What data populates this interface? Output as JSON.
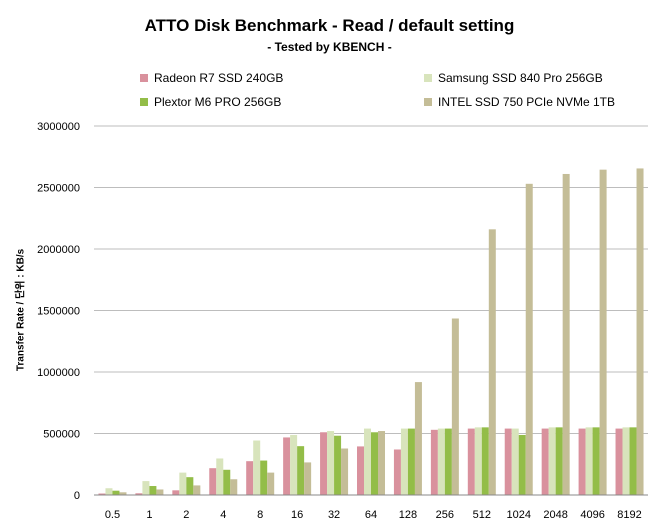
{
  "chart_data": {
    "type": "bar",
    "title": "ATTO Disk Benchmark - Read / default setting",
    "subtitle": "- Tested by KBENCH -",
    "ylabel": "Transfer Rate / 단위 : KB/s",
    "xlabel": "",
    "ylim": [
      0,
      3000000
    ],
    "yticks": [
      0,
      500000,
      1000000,
      1500000,
      2000000,
      2500000,
      3000000
    ],
    "ytick_labels": [
      "0",
      "500000",
      "1000000",
      "1500000",
      "2000000",
      "2500000",
      "3000000"
    ],
    "grid": true,
    "legend_position": "top",
    "categories": [
      "0.5",
      "1",
      "2",
      "4",
      "8",
      "16",
      "32",
      "64",
      "128",
      "256",
      "512",
      "1024",
      "2048",
      "4096",
      "8192"
    ],
    "series": [
      {
        "name": "Radeon R7 SSD 240GB",
        "color": "#d9919d",
        "values": [
          12000,
          14000,
          38000,
          218000,
          275000,
          468000,
          510000,
          395000,
          370000,
          530000,
          540000,
          540000,
          540000,
          540000,
          540000
        ]
      },
      {
        "name": "Samsung SSD 840 Pro 256GB",
        "color": "#d8e4bc",
        "values": [
          55000,
          113000,
          182000,
          297000,
          443000,
          488000,
          520000,
          540000,
          540000,
          540000,
          550000,
          540000,
          550000,
          550000,
          550000
        ]
      },
      {
        "name": "Plextor M6 PRO 256GB",
        "color": "#93bd48",
        "values": [
          35000,
          73000,
          145000,
          205000,
          280000,
          397000,
          482000,
          510000,
          540000,
          540000,
          550000,
          488000,
          550000,
          550000,
          550000
        ]
      },
      {
        "name": "INTEL SSD 750 PCIe NVMe 1TB",
        "color": "#c4bd97",
        "values": [
          22000,
          45000,
          78000,
          128000,
          182000,
          265000,
          378000,
          520000,
          918000,
          1435000,
          2160000,
          2530000,
          2610000,
          2645000,
          2655000
        ]
      }
    ]
  }
}
